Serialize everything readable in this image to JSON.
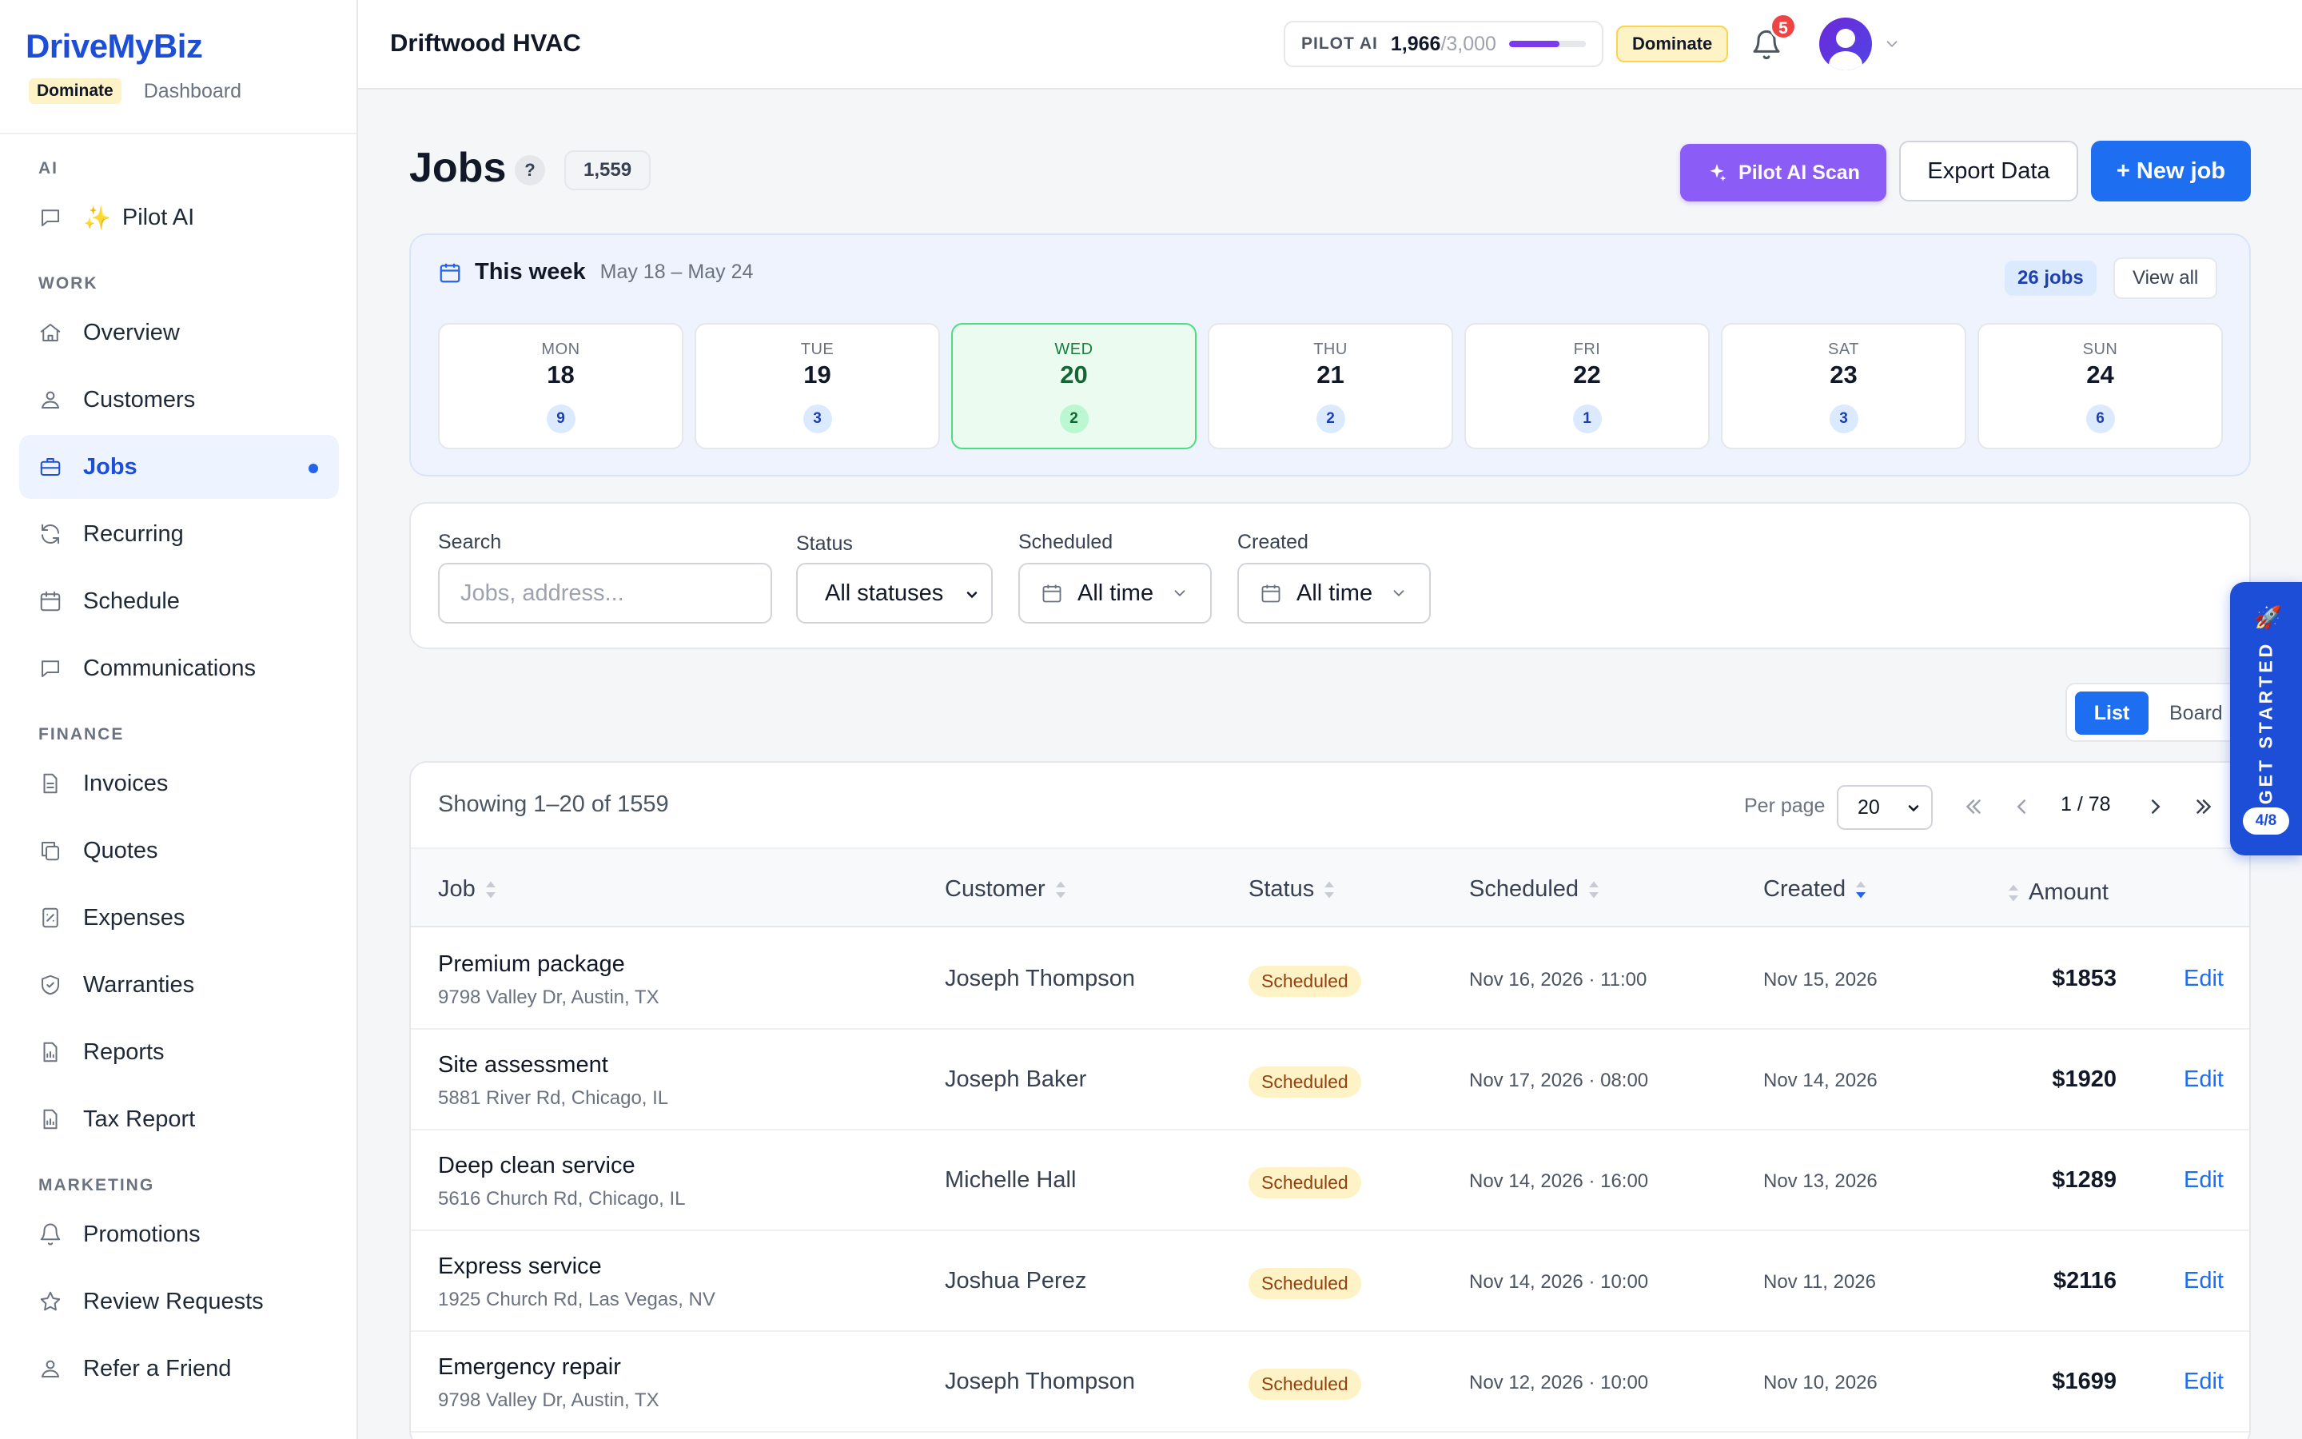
{
  "brand": {
    "name": "DriveMyBiz",
    "plan": "Dominate",
    "sub": "Dashboard"
  },
  "sidebar": {
    "sections": [
      {
        "title": "AI",
        "items": [
          {
            "label": "Pilot AI",
            "icon": "chat-icon",
            "spark": "✨"
          }
        ]
      },
      {
        "title": "WORK",
        "items": [
          {
            "label": "Overview",
            "icon": "home-icon"
          },
          {
            "label": "Customers",
            "icon": "users-icon"
          },
          {
            "label": "Jobs",
            "icon": "briefcase-icon",
            "active": true
          },
          {
            "label": "Recurring",
            "icon": "refresh-icon"
          },
          {
            "label": "Schedule",
            "icon": "calendar-icon"
          },
          {
            "label": "Communications",
            "icon": "chat-icon"
          }
        ]
      },
      {
        "title": "FINANCE",
        "items": [
          {
            "label": "Invoices",
            "icon": "document-icon"
          },
          {
            "label": "Quotes",
            "icon": "copy-icon"
          },
          {
            "label": "Expenses",
            "icon": "receipt-icon"
          },
          {
            "label": "Warranties",
            "icon": "shield-icon"
          },
          {
            "label": "Reports",
            "icon": "report-icon"
          },
          {
            "label": "Tax Report",
            "icon": "report-icon"
          }
        ]
      },
      {
        "title": "MARKETING",
        "items": [
          {
            "label": "Promotions",
            "icon": "bell-icon"
          },
          {
            "label": "Review Requests",
            "icon": "star-icon"
          },
          {
            "label": "Refer a Friend",
            "icon": "users-icon"
          }
        ]
      }
    ]
  },
  "topbar": {
    "company": "Driftwood HVAC",
    "pilot": {
      "label": "PILOT AI",
      "used": "1,966",
      "max": "/3,000",
      "fraction": 0.655
    },
    "plan_badge": "Dominate",
    "notifications": "5"
  },
  "page": {
    "title": "Jobs",
    "help": "?",
    "count": "1,559",
    "ai_scan": "Pilot AI Scan",
    "export": "Export Data",
    "new_job": "+ New job"
  },
  "week": {
    "title": "This week",
    "range": "May 18 – May 24",
    "jobs_count": "26 jobs",
    "view_all": "View all",
    "days": [
      {
        "name": "MON",
        "num": "18",
        "count": "9"
      },
      {
        "name": "TUE",
        "num": "19",
        "count": "3"
      },
      {
        "name": "WED",
        "num": "20",
        "count": "2",
        "today": true
      },
      {
        "name": "THU",
        "num": "21",
        "count": "2"
      },
      {
        "name": "FRI",
        "num": "22",
        "count": "1"
      },
      {
        "name": "SAT",
        "num": "23",
        "count": "3"
      },
      {
        "name": "SUN",
        "num": "24",
        "count": "6"
      }
    ]
  },
  "filters": {
    "search_label": "Search",
    "search_placeholder": "Jobs, address...",
    "status_label": "Status",
    "status_value": "All statuses",
    "scheduled_label": "Scheduled",
    "scheduled_value": "All time",
    "created_label": "Created",
    "created_value": "All time"
  },
  "view_toggle": {
    "list": "List",
    "board": "Board"
  },
  "get_started": {
    "label": "GET STARTED",
    "progress": "4/8"
  },
  "table": {
    "showing": "Showing 1–20 of 1559",
    "per_page_label": "Per page",
    "per_page": "20",
    "page_info": "1 / 78",
    "columns": {
      "job": "Job",
      "customer": "Customer",
      "status": "Status",
      "scheduled": "Scheduled",
      "created": "Created",
      "amount": "Amount"
    },
    "edit_label": "Edit",
    "rows": [
      {
        "job": "Premium package",
        "address": "9798 Valley Dr, Austin, TX",
        "customer": "Joseph Thompson",
        "status": "Scheduled",
        "scheduled": "Nov 16, 2026 · 11:00",
        "created": "Nov 15, 2026",
        "amount": "$1853"
      },
      {
        "job": "Site assessment",
        "address": "5881 River Rd, Chicago, IL",
        "customer": "Joseph Baker",
        "status": "Scheduled",
        "scheduled": "Nov 17, 2026 · 08:00",
        "created": "Nov 14, 2026",
        "amount": "$1920"
      },
      {
        "job": "Deep clean service",
        "address": "5616 Church Rd, Chicago, IL",
        "customer": "Michelle Hall",
        "status": "Scheduled",
        "scheduled": "Nov 14, 2026 · 16:00",
        "created": "Nov 13, 2026",
        "amount": "$1289"
      },
      {
        "job": "Express service",
        "address": "1925 Church Rd, Las Vegas, NV",
        "customer": "Joshua Perez",
        "status": "Scheduled",
        "scheduled": "Nov 14, 2026 · 10:00",
        "created": "Nov 11, 2026",
        "amount": "$2116"
      },
      {
        "job": "Emergency repair",
        "address": "9798 Valley Dr, Austin, TX",
        "customer": "Joseph Thompson",
        "status": "Scheduled",
        "scheduled": "Nov 12, 2026 · 10:00",
        "created": "Nov 10, 2026",
        "amount": "$1699"
      }
    ]
  }
}
